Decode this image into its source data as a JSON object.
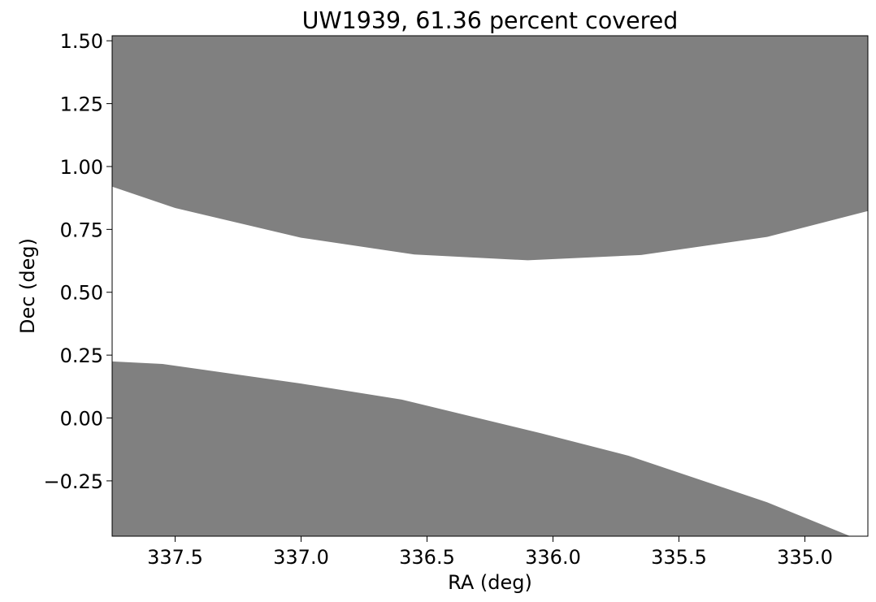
{
  "chart_data": {
    "type": "area",
    "title": "UW1939, 61.36 percent covered",
    "xlabel": "RA (deg)",
    "ylabel": "Dec (deg)",
    "xlim": [
      337.75,
      334.75
    ],
    "ylim": [
      -0.47,
      1.52
    ],
    "x_inverted": true,
    "grid": false,
    "fill_color": "#808080",
    "xticks": [
      {
        "value": 337.5,
        "label": "337.5"
      },
      {
        "value": 337.0,
        "label": "337.0"
      },
      {
        "value": 336.5,
        "label": "336.5"
      },
      {
        "value": 336.0,
        "label": "336.0"
      },
      {
        "value": 335.5,
        "label": "335.5"
      },
      {
        "value": 335.0,
        "label": "335.0"
      }
    ],
    "yticks": [
      {
        "value": 1.5,
        "label": "1.50"
      },
      {
        "value": 1.25,
        "label": "1.25"
      },
      {
        "value": 1.0,
        "label": "1.00"
      },
      {
        "value": 0.75,
        "label": "0.75"
      },
      {
        "value": 0.5,
        "label": "0.50"
      },
      {
        "value": 0.25,
        "label": "0.25"
      },
      {
        "value": 0.0,
        "label": "0.00"
      },
      {
        "value": -0.25,
        "label": "−0.25"
      }
    ],
    "regions": [
      {
        "boundary": "upper",
        "points": [
          [
            337.75,
            0.92
          ],
          [
            337.5,
            0.835
          ],
          [
            337.0,
            0.717
          ],
          [
            336.55,
            0.65
          ],
          [
            336.1,
            0.627
          ],
          [
            335.65,
            0.648
          ],
          [
            335.15,
            0.72
          ],
          [
            334.75,
            0.823
          ]
        ]
      },
      {
        "boundary": "lower",
        "points": [
          [
            337.75,
            0.225
          ],
          [
            337.55,
            0.215
          ],
          [
            337.0,
            0.137
          ],
          [
            336.6,
            0.073
          ],
          [
            336.05,
            -0.06
          ],
          [
            335.7,
            -0.15
          ],
          [
            335.15,
            -0.335
          ],
          [
            334.82,
            -0.47
          ]
        ]
      }
    ]
  }
}
